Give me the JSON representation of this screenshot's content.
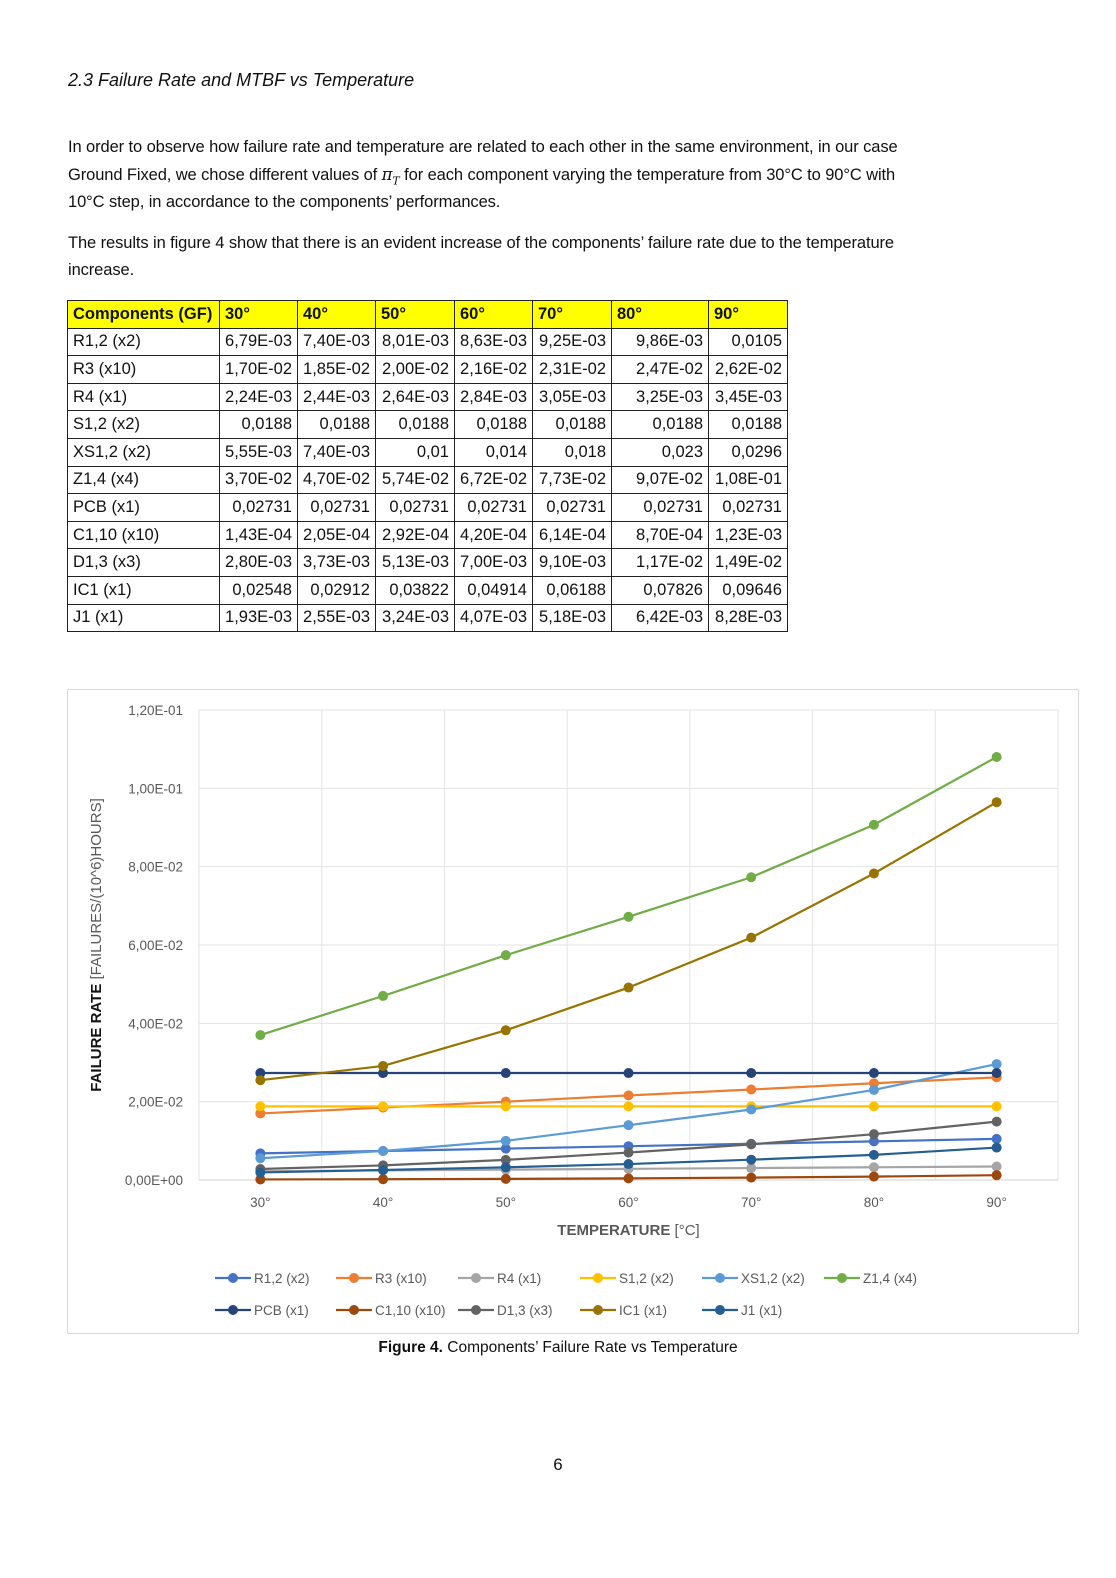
{
  "heading": "2.3 Failure Rate and MTBF vs Temperature",
  "paragraph1": {
    "line1": "In order to observe how failure rate and temperature are related to each other in the same environment, in our case",
    "line2_before": "Ground Fixed, we chose different values of",
    "symbol": "π",
    "symbol_sub": "T",
    "line2_after": "for each component varying the temperature from 30°C to 90°C with",
    "line3": "10°C step, in accordance to the components’ performances."
  },
  "paragraph2": {
    "line1": "The results in figure 4 show that there is an evident increase of the components’ failure rate due to the temperature",
    "line2": "increase."
  },
  "table": {
    "headers": [
      "Components (GF)",
      "30°",
      "40°",
      "50°",
      "60°",
      "70°",
      "80°",
      "90°"
    ],
    "rows": [
      [
        "R1,2 (x2)",
        "6,79E-03",
        "7,40E-03",
        "8,01E-03",
        "8,63E-03",
        "9,25E-03",
        "9,86E-03",
        "0,0105"
      ],
      [
        "R3 (x10)",
        "1,70E-02",
        "1,85E-02",
        "2,00E-02",
        "2,16E-02",
        "2,31E-02",
        "2,47E-02",
        "2,62E-02"
      ],
      [
        "R4 (x1)",
        "2,24E-03",
        "2,44E-03",
        "2,64E-03",
        "2,84E-03",
        "3,05E-03",
        "3,25E-03",
        "3,45E-03"
      ],
      [
        "S1,2 (x2)",
        "0,0188",
        "0,0188",
        "0,0188",
        "0,0188",
        "0,0188",
        "0,0188",
        "0,0188"
      ],
      [
        "XS1,2 (x2)",
        "5,55E-03",
        "7,40E-03",
        "0,01",
        "0,014",
        "0,018",
        "0,023",
        "0,0296"
      ],
      [
        "Z1,4 (x4)",
        "3,70E-02",
        "4,70E-02",
        "5,74E-02",
        "6,72E-02",
        "7,73E-02",
        "9,07E-02",
        "1,08E-01"
      ],
      [
        "PCB (x1)",
        "0,02731",
        "0,02731",
        "0,02731",
        "0,02731",
        "0,02731",
        "0,02731",
        "0,02731"
      ],
      [
        "C1,10 (x10)",
        "1,43E-04",
        "2,05E-04",
        "2,92E-04",
        "4,20E-04",
        "6,14E-04",
        "8,70E-04",
        "1,23E-03"
      ],
      [
        "D1,3 (x3)",
        "2,80E-03",
        "3,73E-03",
        "5,13E-03",
        "7,00E-03",
        "9,10E-03",
        "1,17E-02",
        "1,49E-02"
      ],
      [
        "IC1 (x1)",
        "0,02548",
        "0,02912",
        "0,03822",
        "0,04914",
        "0,06188",
        "0,07826",
        "0,09646"
      ],
      [
        "J1 (x1)",
        "1,93E-03",
        "2,55E-03",
        "3,24E-03",
        "4,07E-03",
        "5,18E-03",
        "6,42E-03",
        "8,28E-03"
      ]
    ]
  },
  "chart_data": {
    "type": "line",
    "title": "",
    "xlabel_bold": "TEMPERATURE",
    "xlabel_unit": " [°C]",
    "ylabel_bold": "FAILURE RATE",
    "ylabel_unit": " [FAILURES/(10^6)HOURS]",
    "categories": [
      "30°",
      "40°",
      "50°",
      "60°",
      "70°",
      "80°",
      "90°"
    ],
    "ylim": [
      0,
      0.12
    ],
    "yticks": [
      0,
      0.02,
      0.04,
      0.06,
      0.08,
      0.1,
      0.12
    ],
    "ytick_labels": [
      "0,00E+00",
      "2,00E-02",
      "4,00E-02",
      "6,00E-02",
      "8,00E-02",
      "1,00E-01",
      "1,20E-01"
    ],
    "grid": true,
    "legend_position": "bottom",
    "series": [
      {
        "name": "R1,2 (x2)",
        "color": "#4472C4",
        "values": [
          0.00679,
          0.0074,
          0.00801,
          0.00863,
          0.00925,
          0.00986,
          0.0105
        ]
      },
      {
        "name": "R3 (x10)",
        "color": "#ED7D31",
        "values": [
          0.017,
          0.0185,
          0.02,
          0.0216,
          0.0231,
          0.0247,
          0.0262
        ]
      },
      {
        "name": "R4 (x1)",
        "color": "#A5A5A5",
        "values": [
          0.00224,
          0.00244,
          0.00264,
          0.00284,
          0.00305,
          0.00325,
          0.00345
        ]
      },
      {
        "name": "S1,2 (x2)",
        "color": "#FFC000",
        "values": [
          0.0188,
          0.0188,
          0.0188,
          0.0188,
          0.0188,
          0.0188,
          0.0188
        ]
      },
      {
        "name": "XS1,2 (x2)",
        "color": "#5B9BD5",
        "values": [
          0.00555,
          0.0074,
          0.01,
          0.014,
          0.018,
          0.023,
          0.0296
        ]
      },
      {
        "name": "Z1,4 (x4)",
        "color": "#70AD47",
        "values": [
          0.037,
          0.047,
          0.0574,
          0.0672,
          0.0773,
          0.0907,
          0.108
        ]
      },
      {
        "name": "PCB (x1)",
        "color": "#264478",
        "values": [
          0.02731,
          0.02731,
          0.02731,
          0.02731,
          0.02731,
          0.02731,
          0.02731
        ]
      },
      {
        "name": "C1,10 (x10)",
        "color": "#9E480E",
        "values": [
          0.000143,
          0.000205,
          0.000292,
          0.00042,
          0.000614,
          0.00087,
          0.00123
        ]
      },
      {
        "name": "D1,3 (x3)",
        "color": "#636363",
        "values": [
          0.0028,
          0.00373,
          0.00513,
          0.007,
          0.0091,
          0.0117,
          0.0149
        ]
      },
      {
        "name": "IC1 (x1)",
        "color": "#997300",
        "values": [
          0.02548,
          0.02912,
          0.03822,
          0.04914,
          0.06188,
          0.07826,
          0.09646
        ]
      },
      {
        "name": "J1 (x1)",
        "color": "#255E91",
        "values": [
          0.00193,
          0.00255,
          0.00324,
          0.00407,
          0.00518,
          0.00642,
          0.00828
        ]
      }
    ]
  },
  "caption": {
    "bold": "Figure 4.",
    "text": " Components’ Failure Rate vs Temperature"
  },
  "page_number": "6"
}
